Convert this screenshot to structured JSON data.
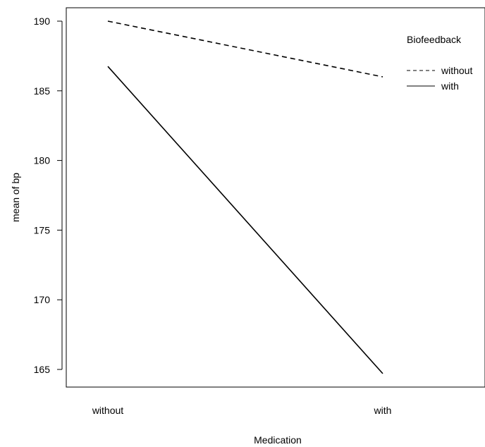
{
  "chart_data": {
    "type": "line",
    "categories": [
      "without",
      "with"
    ],
    "xlabel": "Medication",
    "ylabel": "mean of bp",
    "ylim": [
      164,
      191
    ],
    "yticks": [
      165,
      170,
      175,
      180,
      185,
      190
    ],
    "grid": false,
    "legend": {
      "title": "Biofeedback",
      "placement": "top-right"
    },
    "series": [
      {
        "name": "without",
        "values": [
          190.0,
          186.0
        ],
        "line_style": "dashed"
      },
      {
        "name": "with",
        "values": [
          186.75,
          164.7
        ],
        "line_style": "solid"
      }
    ],
    "colors": {
      "line": "#000000"
    }
  }
}
